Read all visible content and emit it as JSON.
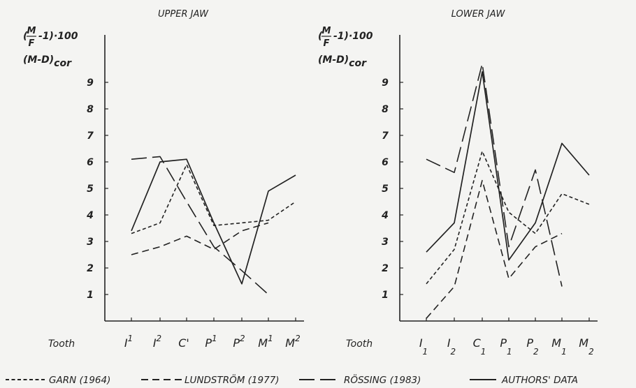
{
  "chart_data": [
    {
      "type": "line",
      "title": "UPPER JAW",
      "ylabel_top": "(M/F -1)·100",
      "ylabel_bottom": "(M-D)cor",
      "xlabel": "Tooth",
      "categories": [
        "I1",
        "I2",
        "C'",
        "P1",
        "P2",
        "M1",
        "M2"
      ],
      "category_labels": [
        {
          "base": "I",
          "mark": "1",
          "pos": "sup"
        },
        {
          "base": "I",
          "mark": "2",
          "pos": "sup"
        },
        {
          "base": "C'",
          "mark": "",
          "pos": "sup"
        },
        {
          "base": "P",
          "mark": "1",
          "pos": "sup"
        },
        {
          "base": "P",
          "mark": "2",
          "pos": "sup"
        },
        {
          "base": "M",
          "mark": "1",
          "pos": "sup"
        },
        {
          "base": "M",
          "mark": "2",
          "pos": "sup"
        }
      ],
      "yticks": [
        1,
        2,
        3,
        4,
        5,
        6,
        7,
        8,
        9
      ],
      "ylim": [
        0,
        10
      ],
      "series": [
        {
          "name": "GARN (1964)",
          "style": "short-dash",
          "values": [
            3.3,
            3.7,
            5.9,
            3.6,
            3.7,
            3.8,
            4.5
          ]
        },
        {
          "name": "LUNDSTRÖM (1977)",
          "style": "medium-dash",
          "values": [
            2.5,
            2.8,
            3.2,
            2.7,
            3.4,
            3.7,
            null
          ]
        },
        {
          "name": "RÖSSING (1983)",
          "style": "long-dash",
          "values": [
            6.1,
            6.2,
            4.5,
            2.8,
            1.9,
            1.0,
            null
          ]
        },
        {
          "name": "AUTHORS' DATA",
          "style": "solid",
          "values": [
            3.4,
            6.0,
            6.1,
            3.7,
            1.4,
            4.9,
            5.5
          ]
        }
      ]
    },
    {
      "type": "line",
      "title": "LOWER JAW",
      "ylabel_top": "(M/F -1)·100",
      "ylabel_bottom": "(M-D)cor",
      "xlabel": "Tooth",
      "categories": [
        "I1",
        "I2",
        "C1",
        "P1",
        "P2",
        "M1",
        "M2"
      ],
      "category_labels": [
        {
          "base": "I",
          "mark": "1",
          "pos": "sub"
        },
        {
          "base": "I",
          "mark": "2",
          "pos": "sub"
        },
        {
          "base": "C",
          "mark": "1",
          "pos": "sub"
        },
        {
          "base": "P",
          "mark": "1",
          "pos": "sub"
        },
        {
          "base": "P",
          "mark": "2",
          "pos": "sub"
        },
        {
          "base": "M",
          "mark": "1",
          "pos": "sub"
        },
        {
          "base": "M",
          "mark": "2",
          "pos": "sub"
        }
      ],
      "yticks": [
        1,
        2,
        3,
        4,
        5,
        6,
        7,
        8,
        9
      ],
      "ylim": [
        0,
        10
      ],
      "series": [
        {
          "name": "GARN (1964)",
          "style": "short-dash",
          "values": [
            1.4,
            2.7,
            6.4,
            4.1,
            3.3,
            4.8,
            4.4
          ]
        },
        {
          "name": "LUNDSTRÖM (1977)",
          "style": "medium-dash",
          "values": [
            0.1,
            1.3,
            5.3,
            1.6,
            2.8,
            3.3,
            null
          ]
        },
        {
          "name": "RÖSSING (1983)",
          "style": "long-dash",
          "values": [
            6.1,
            5.6,
            9.7,
            2.8,
            5.7,
            1.3,
            null
          ]
        },
        {
          "name": "AUTHORS' DATA",
          "style": "solid",
          "values": [
            2.6,
            3.7,
            9.4,
            2.3,
            3.7,
            6.7,
            5.5
          ]
        }
      ]
    }
  ],
  "legend": [
    {
      "label": "GARN (1964)",
      "style": "short-dash"
    },
    {
      "label": "LUNDSTRÖM (1977)",
      "style": "medium-dash"
    },
    {
      "label": "RÖSSING (1983)",
      "style": "long-dash"
    },
    {
      "label": "AUTHORS' DATA",
      "style": "solid"
    }
  ],
  "legend_position": "bottom",
  "line_color": "#222222"
}
